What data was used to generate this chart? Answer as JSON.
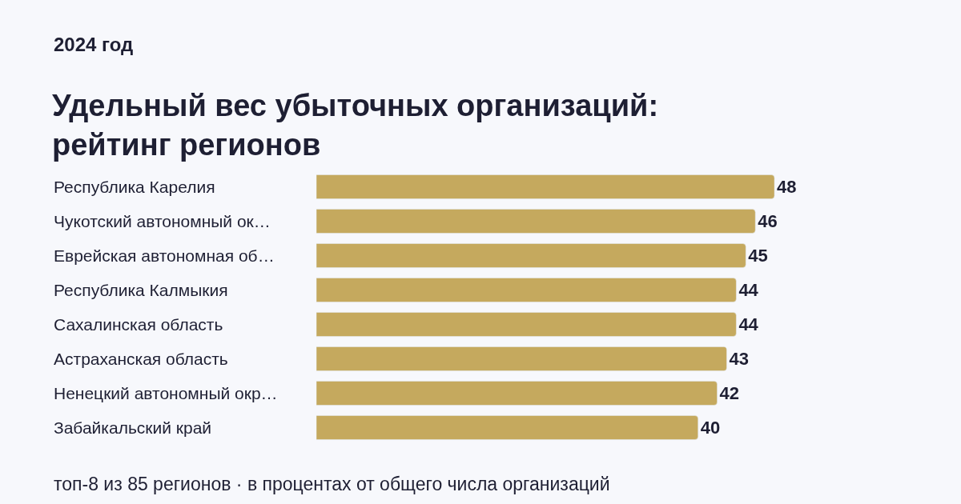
{
  "chart_data": {
    "type": "bar",
    "orientation": "horizontal",
    "title": "Удельный вес убыточных организаций: рейтинг регионов",
    "subtitle": "2024 год",
    "categories": [
      "Республика Карелия",
      "Чукотский автономный ок…",
      "Еврейская автономная об…",
      "Республика Калмыкия",
      "Сахалинская область",
      "Астраханская область",
      "Ненецкий автономный окр…",
      "Забайкальский край"
    ],
    "values": [
      48,
      46,
      45,
      44,
      44,
      43,
      42,
      40
    ],
    "color": "#c5a95e",
    "data_labels": true,
    "annotations": [
      "топ-8 из 85 регионов · в процентах от общего числа организаций"
    ]
  }
}
